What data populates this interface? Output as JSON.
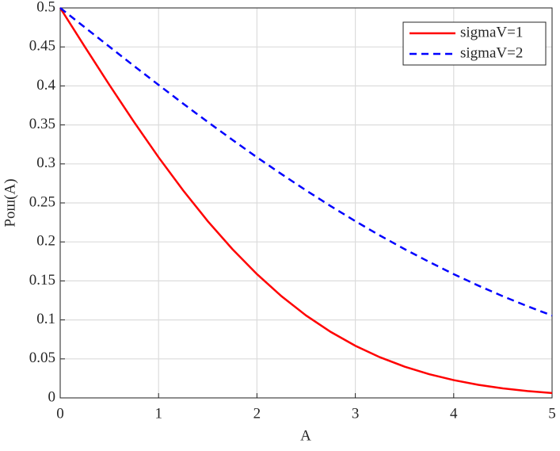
{
  "chart_data": {
    "type": "line",
    "x_label": "A",
    "y_label": "Pош(A)",
    "x": [
      0,
      0.25,
      0.5,
      0.75,
      1,
      1.25,
      1.5,
      1.75,
      2,
      2.25,
      2.5,
      2.75,
      3,
      3.25,
      3.5,
      3.75,
      4,
      4.25,
      4.5,
      4.75,
      5
    ],
    "series": [
      {
        "name": "sigmaV=1",
        "color": "#ff0000",
        "dash": "solid",
        "values": [
          0.5,
          0.4503,
          0.4013,
          0.3538,
          0.3085,
          0.266,
          0.2266,
          0.1908,
          0.1587,
          0.1303,
          0.1056,
          0.0846,
          0.0668,
          0.0521,
          0.0401,
          0.0304,
          0.0228,
          0.0168,
          0.0122,
          0.0088,
          0.0062
        ]
      },
      {
        "name": "sigmaV=2",
        "color": "#0000ff",
        "dash": "dashed",
        "values": [
          0.5,
          0.4751,
          0.4503,
          0.4256,
          0.4013,
          0.3773,
          0.3538,
          0.3309,
          0.3085,
          0.2869,
          0.266,
          0.2459,
          0.2266,
          0.2082,
          0.1908,
          0.1744,
          0.1587,
          0.144,
          0.1303,
          0.1175,
          0.1056
        ]
      }
    ],
    "xlim": [
      0,
      5
    ],
    "xticks": [
      0,
      1,
      2,
      3,
      4,
      5
    ],
    "ylim": [
      0,
      0.5
    ],
    "yticks": [
      0,
      0.05,
      0.1,
      0.15,
      0.2,
      0.25,
      0.3,
      0.35,
      0.4,
      0.45,
      0.5
    ],
    "grid": true,
    "legend": "upper right"
  }
}
